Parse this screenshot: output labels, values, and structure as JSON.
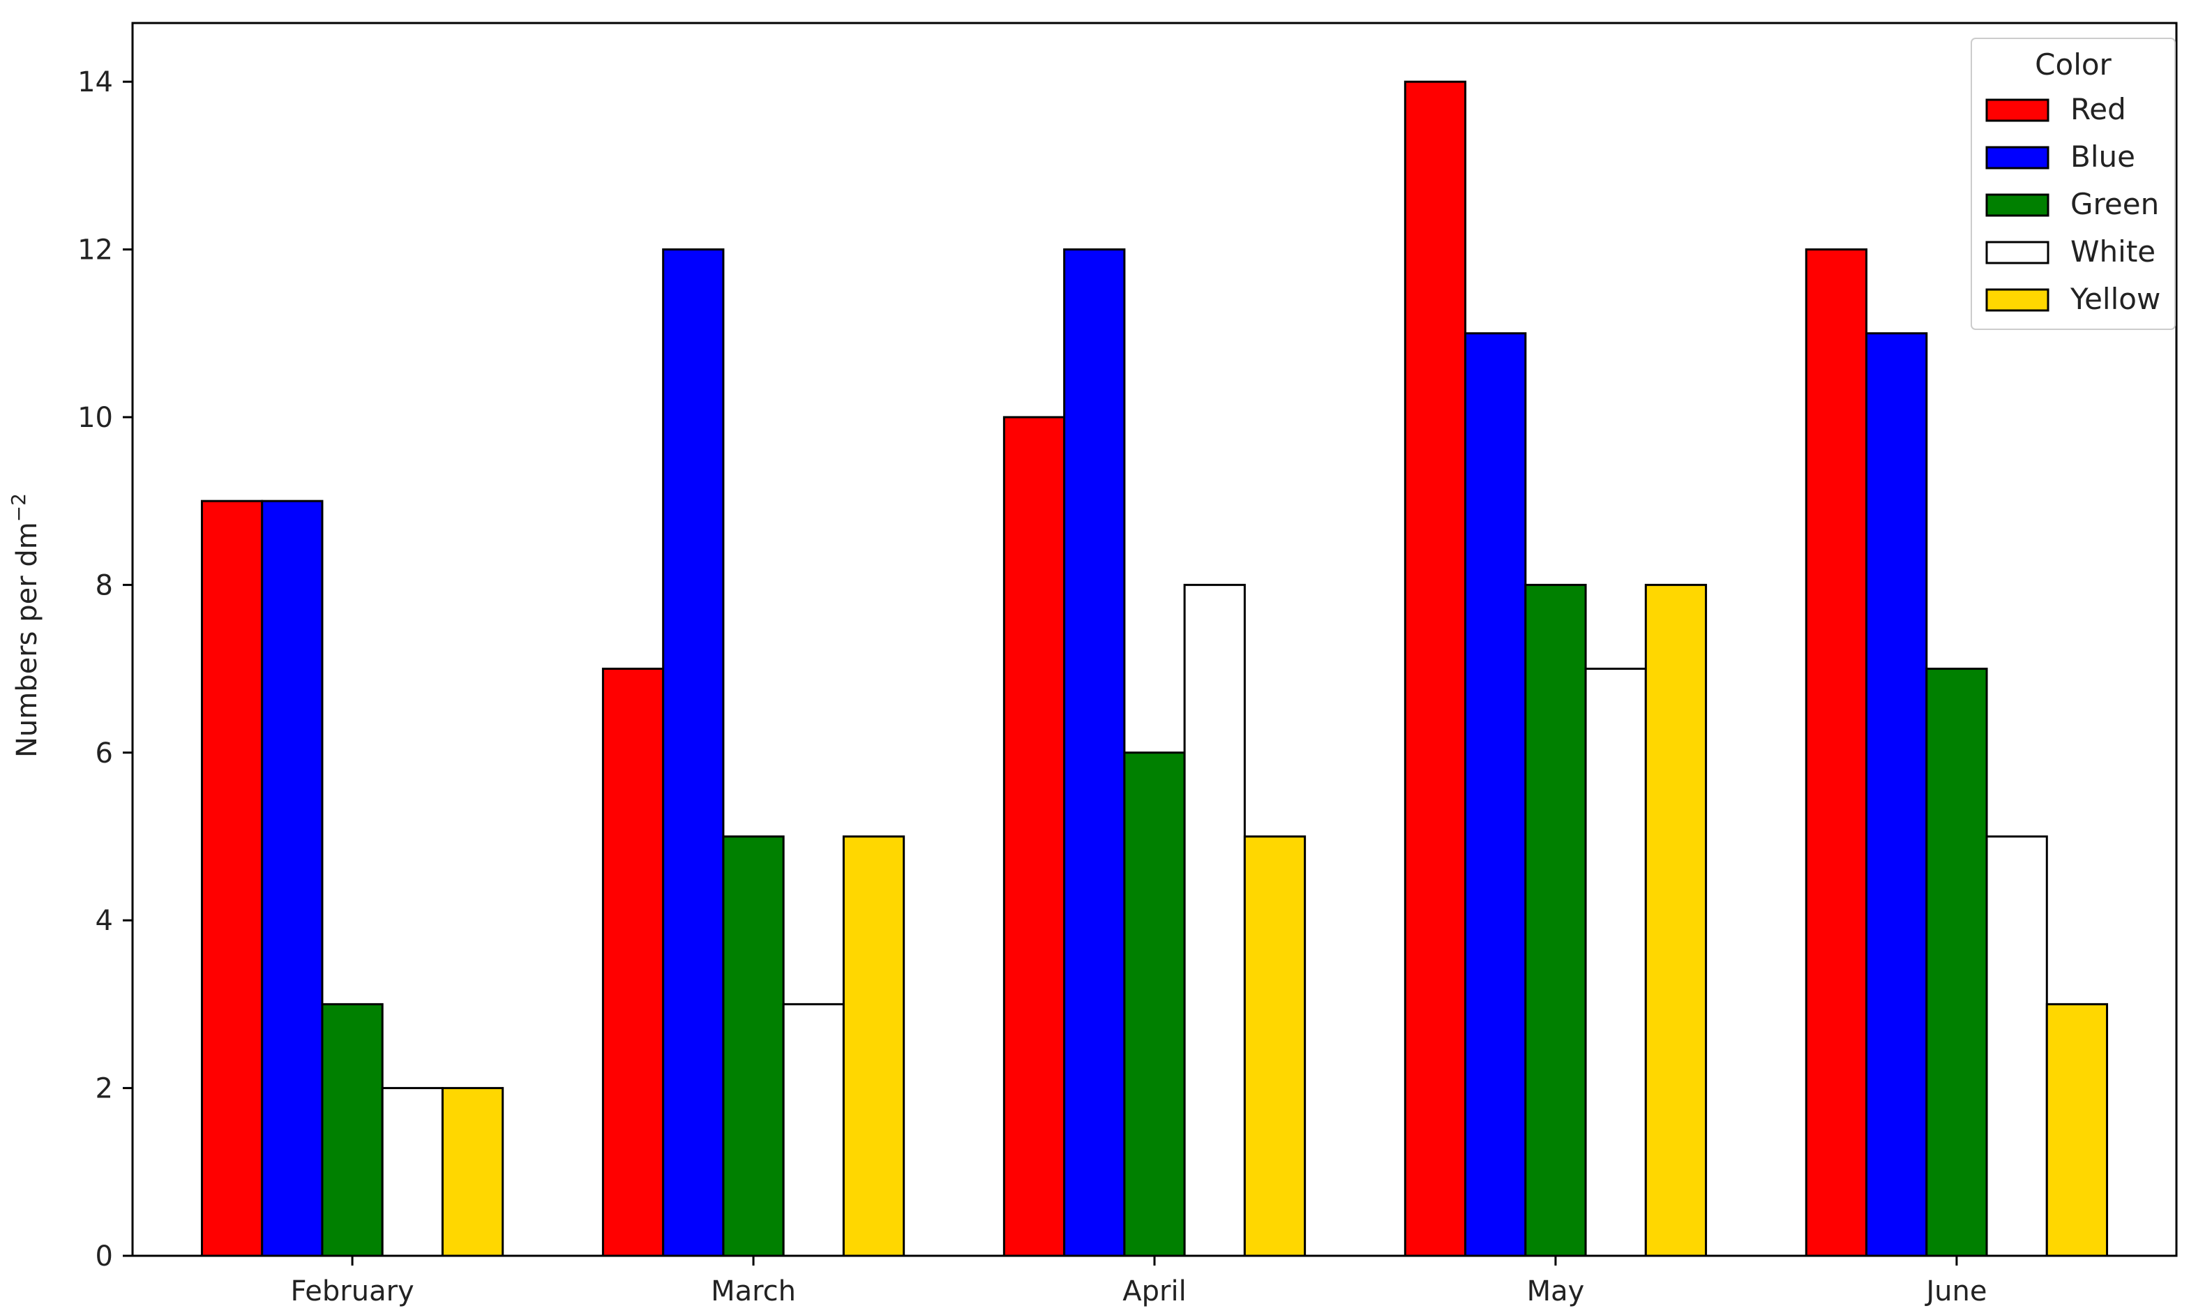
{
  "chart_data": {
    "type": "bar",
    "title": "",
    "xlabel": "",
    "ylabel": "Numbers per dm",
    "ylabel_superscript": "−2",
    "categories": [
      "February",
      "March",
      "April",
      "May",
      "June"
    ],
    "ylim": [
      0,
      14.7
    ],
    "yticks": [
      0,
      2,
      4,
      6,
      8,
      10,
      12,
      14
    ],
    "grid": false,
    "legend": {
      "title": "Color",
      "placement": "top-right"
    },
    "series": [
      {
        "name": "Red",
        "color": "#ff0000",
        "values": [
          9,
          7,
          10,
          14,
          12
        ]
      },
      {
        "name": "Blue",
        "color": "#0000ff",
        "values": [
          9,
          12,
          12,
          11,
          11
        ]
      },
      {
        "name": "Green",
        "color": "#008000",
        "values": [
          3,
          5,
          6,
          8,
          7
        ]
      },
      {
        "name": "White",
        "color": "#ffffff",
        "values": [
          2,
          3,
          8,
          7,
          5
        ]
      },
      {
        "name": "Yellow",
        "color": "#ffd700",
        "values": [
          2,
          5,
          5,
          8,
          3
        ]
      }
    ]
  }
}
